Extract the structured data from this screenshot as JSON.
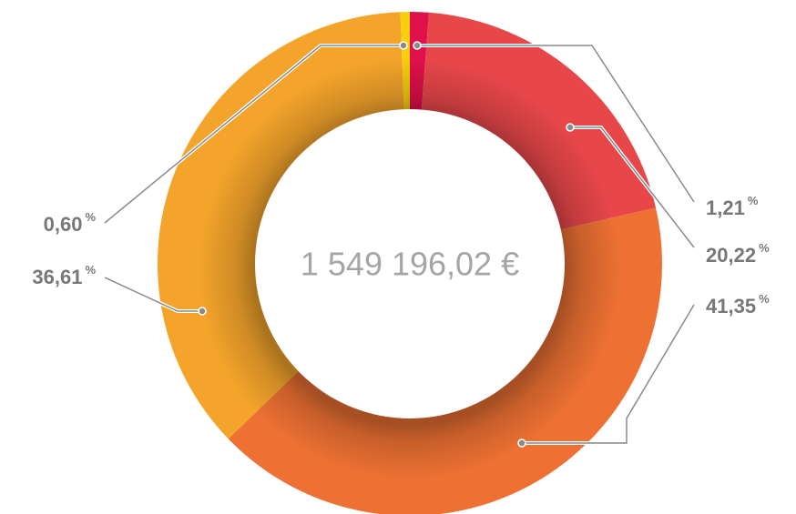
{
  "chart_data": {
    "type": "donut",
    "center_label": "1 549 196,02 €",
    "unit": "%",
    "categories": [
      null,
      null,
      null,
      null,
      null
    ],
    "values": [
      1.21,
      20.22,
      41.35,
      36.61,
      0.6
    ],
    "value_labels": [
      "1,21",
      "20,22",
      "41,35",
      "36,61",
      "0,60"
    ],
    "colors": [
      "#e0104a",
      "#e8474a",
      "#ee7133",
      "#f4a42b",
      "#f8cf0c"
    ]
  }
}
